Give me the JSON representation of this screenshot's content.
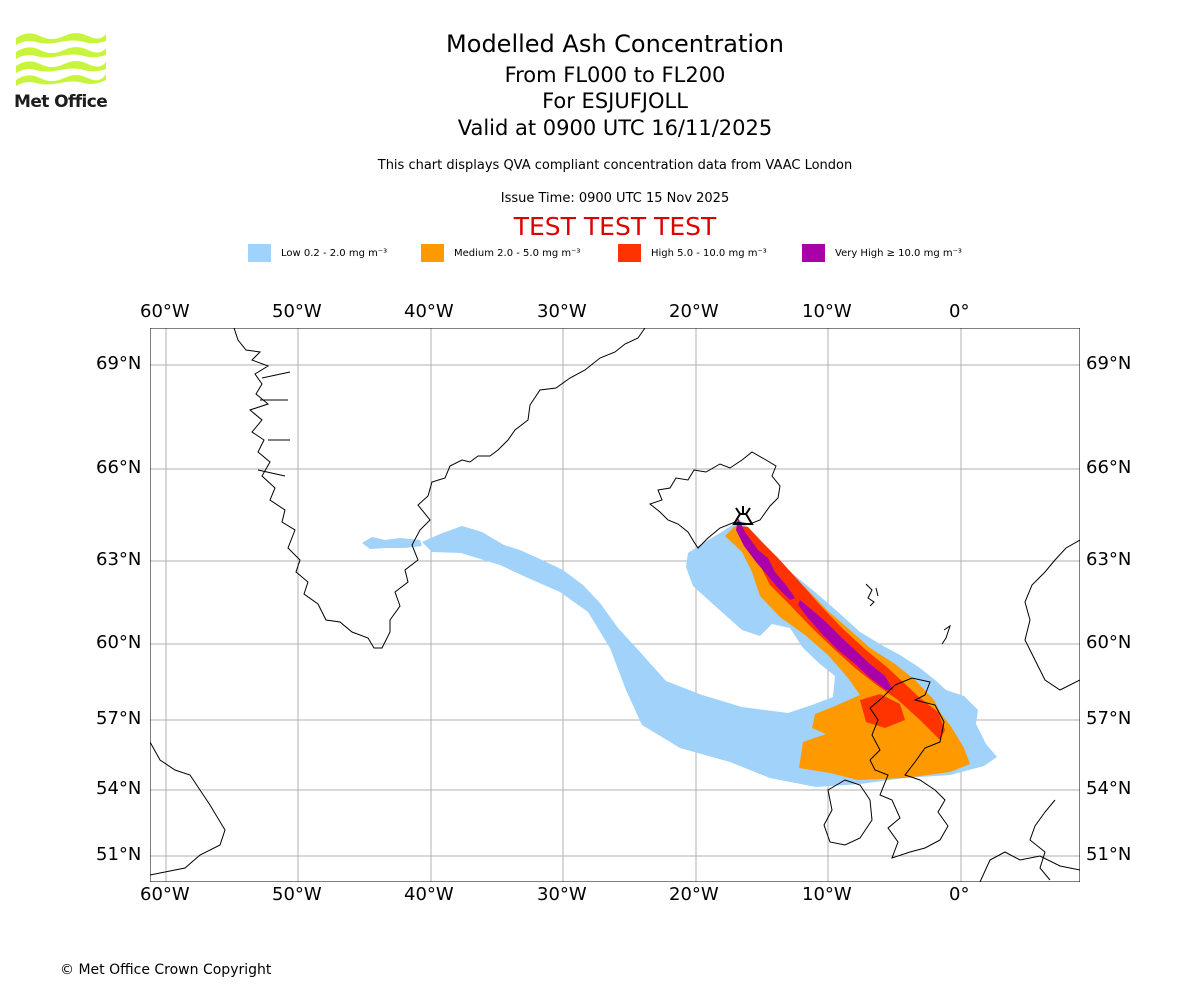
{
  "header": {
    "title": "Modelled Ash Concentration",
    "flight_level_range": "From FL000 to FL200",
    "volcano": "For ESJUFJOLL",
    "valid_time": "Valid at 0900 UTC 16/11/2025",
    "description": "This chart displays QVA compliant concentration data from VAAC London",
    "issue_time": "Issue Time: 0900 UTC 15 Nov 2025",
    "test_banner": "TEST TEST TEST"
  },
  "logo": {
    "text": "Met Office",
    "icon": "met-office-wave-logo-icon"
  },
  "legend": [
    {
      "label": "Low 0.2 - 2.0 mg m⁻³",
      "color": "#a0d2fa"
    },
    {
      "label": "Medium 2.0 - 5.0 mg m⁻³",
      "color": "#ff9900"
    },
    {
      "label": "High 5.0 - 10.0 mg m⁻³",
      "color": "#ff3300"
    },
    {
      "label": "Very High  ≥  10.0 mg m⁻³",
      "color": "#aa00aa"
    }
  ],
  "map": {
    "lon_labels": [
      "60°W",
      "50°W",
      "40°W",
      "30°W",
      "20°W",
      "10°W",
      "0°"
    ],
    "lat_labels": [
      "69°N",
      "66°N",
      "63°N",
      "60°N",
      "57°N",
      "54°N",
      "51°N"
    ],
    "lon_range": [
      -61,
      9
    ],
    "lat_range": [
      50,
      70
    ],
    "volcano_icon": "volcano-marker-icon",
    "colors": {
      "gridline": "#b0b0b0",
      "coastline": "#000000",
      "banner": "#dd0000"
    }
  },
  "footer": {
    "copyright": "© Met Office Crown Copyright"
  }
}
